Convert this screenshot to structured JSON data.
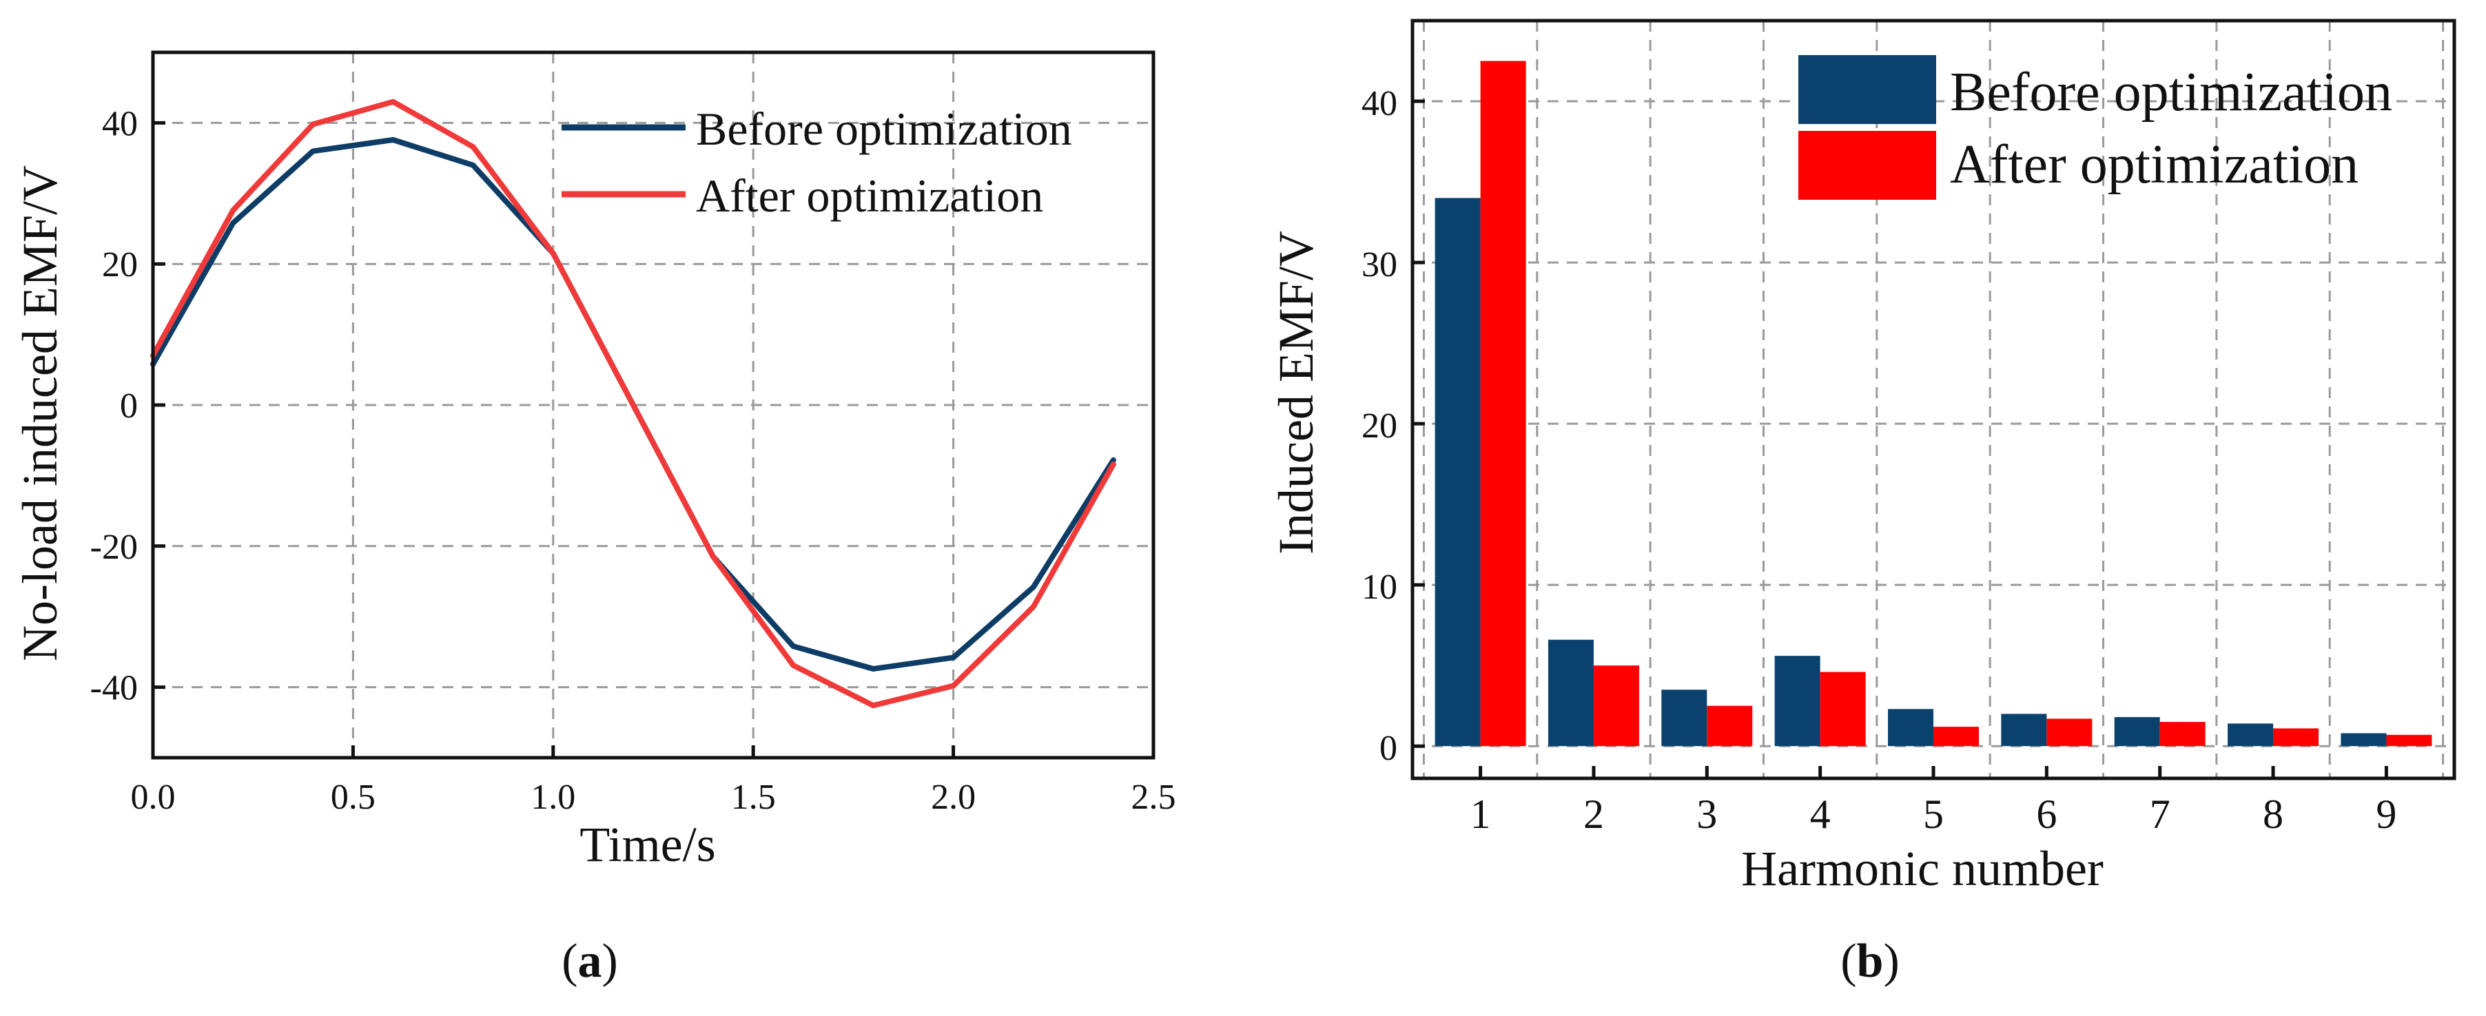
{
  "chart_data": [
    {
      "type": "line",
      "panel_label": "a",
      "title": "",
      "xlabel": "Time/s",
      "ylabel": "No-load induced EMF/V",
      "xlim": [
        0,
        2.5
      ],
      "ylim": [
        -50,
        50
      ],
      "xticks": [
        "0.0",
        "0.5",
        "1.0",
        "1.5",
        "2.0",
        "2.5"
      ],
      "yticks": [
        "-40",
        "-20",
        "0",
        "20",
        "40"
      ],
      "x": [
        0,
        0.2,
        0.4,
        0.6,
        0.8,
        1.0,
        1.2,
        1.4,
        1.6,
        1.8,
        2.0,
        2.2,
        2.4
      ],
      "series": [
        {
          "name": "Before optimization",
          "color": "#0d3d66",
          "values": [
            5.8,
            25.8,
            36.0,
            37.6,
            34.0,
            21.5,
            0.0,
            -21.5,
            -34.2,
            -37.4,
            -35.8,
            -25.8,
            -7.8
          ]
        },
        {
          "name": "After optimization",
          "color": "#f03a3a",
          "values": [
            7.0,
            27.6,
            39.8,
            43.0,
            36.6,
            21.5,
            0.0,
            -21.5,
            -36.9,
            -42.6,
            -39.8,
            -28.6,
            -8.4
          ]
        }
      ],
      "grid": true,
      "legend_position": "top-right"
    },
    {
      "type": "bar",
      "panel_label": "b",
      "title": "",
      "xlabel": "Harmonic number",
      "ylabel": "Induced EMF/V",
      "ylim": [
        -2,
        45
      ],
      "yticks": [
        "0",
        "10",
        "20",
        "30",
        "40"
      ],
      "categories": [
        "1",
        "2",
        "3",
        "4",
        "5",
        "6",
        "7",
        "8",
        "9"
      ],
      "series": [
        {
          "name": "Before optimization",
          "color": "#0a426e",
          "values": [
            34.0,
            6.6,
            3.5,
            5.6,
            2.3,
            2.0,
            1.8,
            1.4,
            0.8
          ]
        },
        {
          "name": "After optimization",
          "color": "#ff0000",
          "values": [
            42.5,
            5.0,
            2.5,
            4.6,
            1.2,
            1.7,
            1.5,
            1.1,
            0.7
          ]
        }
      ],
      "grid": true,
      "legend_position": "top-right"
    }
  ]
}
